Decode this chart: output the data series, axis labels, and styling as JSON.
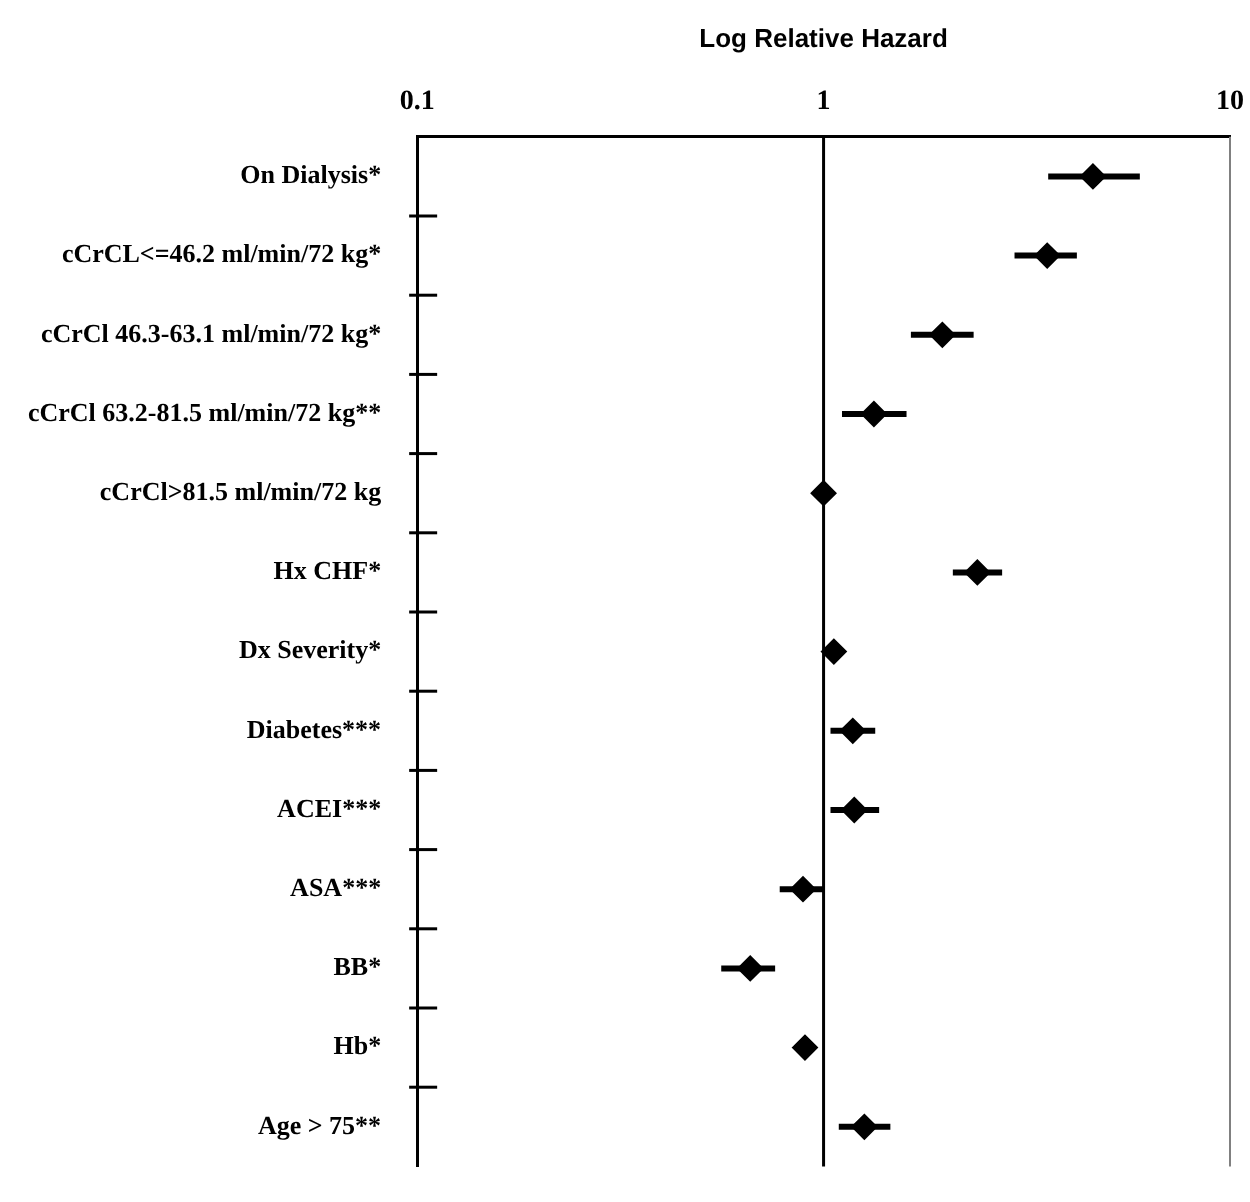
{
  "chart_data": {
    "type": "scatter",
    "orientation": "horizontal",
    "xlabel": "Log Relative Hazard",
    "categories": [
      "On Dialysis*",
      "cCrCL<=46.2 ml/min/72 kg*",
      "cCrCl 46.3-63.1 ml/min/72 kg*",
      "cCrCl 63.2-81.5 ml/min/72 kg**",
      "cCrCl>81.5 ml/min/72 kg",
      "Hx CHF*",
      "Dx Severity*",
      "Diabetes***",
      "ACEI***",
      "ASA***",
      "BB*",
      "Hb*",
      "Age > 75**"
    ],
    "values": [
      4.6,
      3.55,
      1.96,
      1.33,
      1.0,
      2.39,
      1.06,
      1.18,
      1.19,
      0.89,
      0.66,
      0.9,
      1.26
    ],
    "errors": [
      [
        3.57,
        6.0
      ],
      [
        2.95,
        4.2
      ],
      [
        1.64,
        2.34
      ],
      [
        1.11,
        1.6
      ],
      null,
      [
        2.08,
        2.75
      ],
      null,
      [
        1.04,
        1.34
      ],
      [
        1.04,
        1.37
      ],
      [
        0.78,
        1.0
      ],
      [
        0.56,
        0.76
      ],
      null,
      [
        1.09,
        1.46
      ]
    ],
    "color": "#000000",
    "marker": "diamond",
    "log": "x",
    "xlim": [
      0.1,
      10
    ],
    "xticks": [
      0.1,
      1,
      10
    ],
    "grid": false,
    "legend": false,
    "ref_lines": [
      {
        "axis": "x",
        "value": 1,
        "color": "#000000"
      }
    ]
  }
}
